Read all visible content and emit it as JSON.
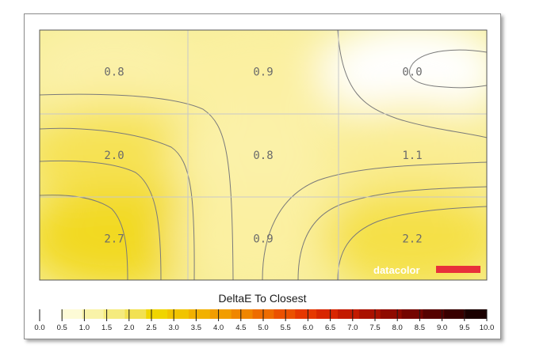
{
  "chart_data": {
    "type": "heatmap",
    "title": "",
    "rows": 3,
    "cols": 3,
    "values": [
      [
        0.8,
        0.9,
        0.0
      ],
      [
        2.0,
        0.8,
        1.1
      ],
      [
        2.7,
        0.9,
        2.2
      ]
    ],
    "value_labels": [
      [
        "0.8",
        "0.9",
        "0.0"
      ],
      [
        "2.0",
        "0.8",
        "1.1"
      ],
      [
        "2.7",
        "0.9",
        "2.2"
      ]
    ],
    "contours": true,
    "colorbar": {
      "title": "DeltaE To Closest",
      "min": 0,
      "max": 10,
      "ticks": [
        "0.0",
        "0.5",
        "1.0",
        "1.5",
        "2.0",
        "2.5",
        "3.0",
        "3.5",
        "4.0",
        "4.5",
        "5.0",
        "5.5",
        "6.0",
        "6.5",
        "7.0",
        "7.5",
        "8.0",
        "8.5",
        "9.0",
        "9.5",
        "10.0"
      ],
      "colors": [
        "#ffffff",
        "#fdfbd6",
        "#f9f3a8",
        "#f5eb7e",
        "#f2e152",
        "#f0d500",
        "#f1c400",
        "#f2b100",
        "#f29d00",
        "#f08600",
        "#ee6c00",
        "#eb5100",
        "#e63800",
        "#d82600",
        "#c31a00",
        "#aa1200",
        "#8f0b00",
        "#740500",
        "#560200",
        "#380000",
        "#1a0000"
      ]
    },
    "brand": {
      "text": "datacolor",
      "accent_color": "#e8303a"
    }
  }
}
